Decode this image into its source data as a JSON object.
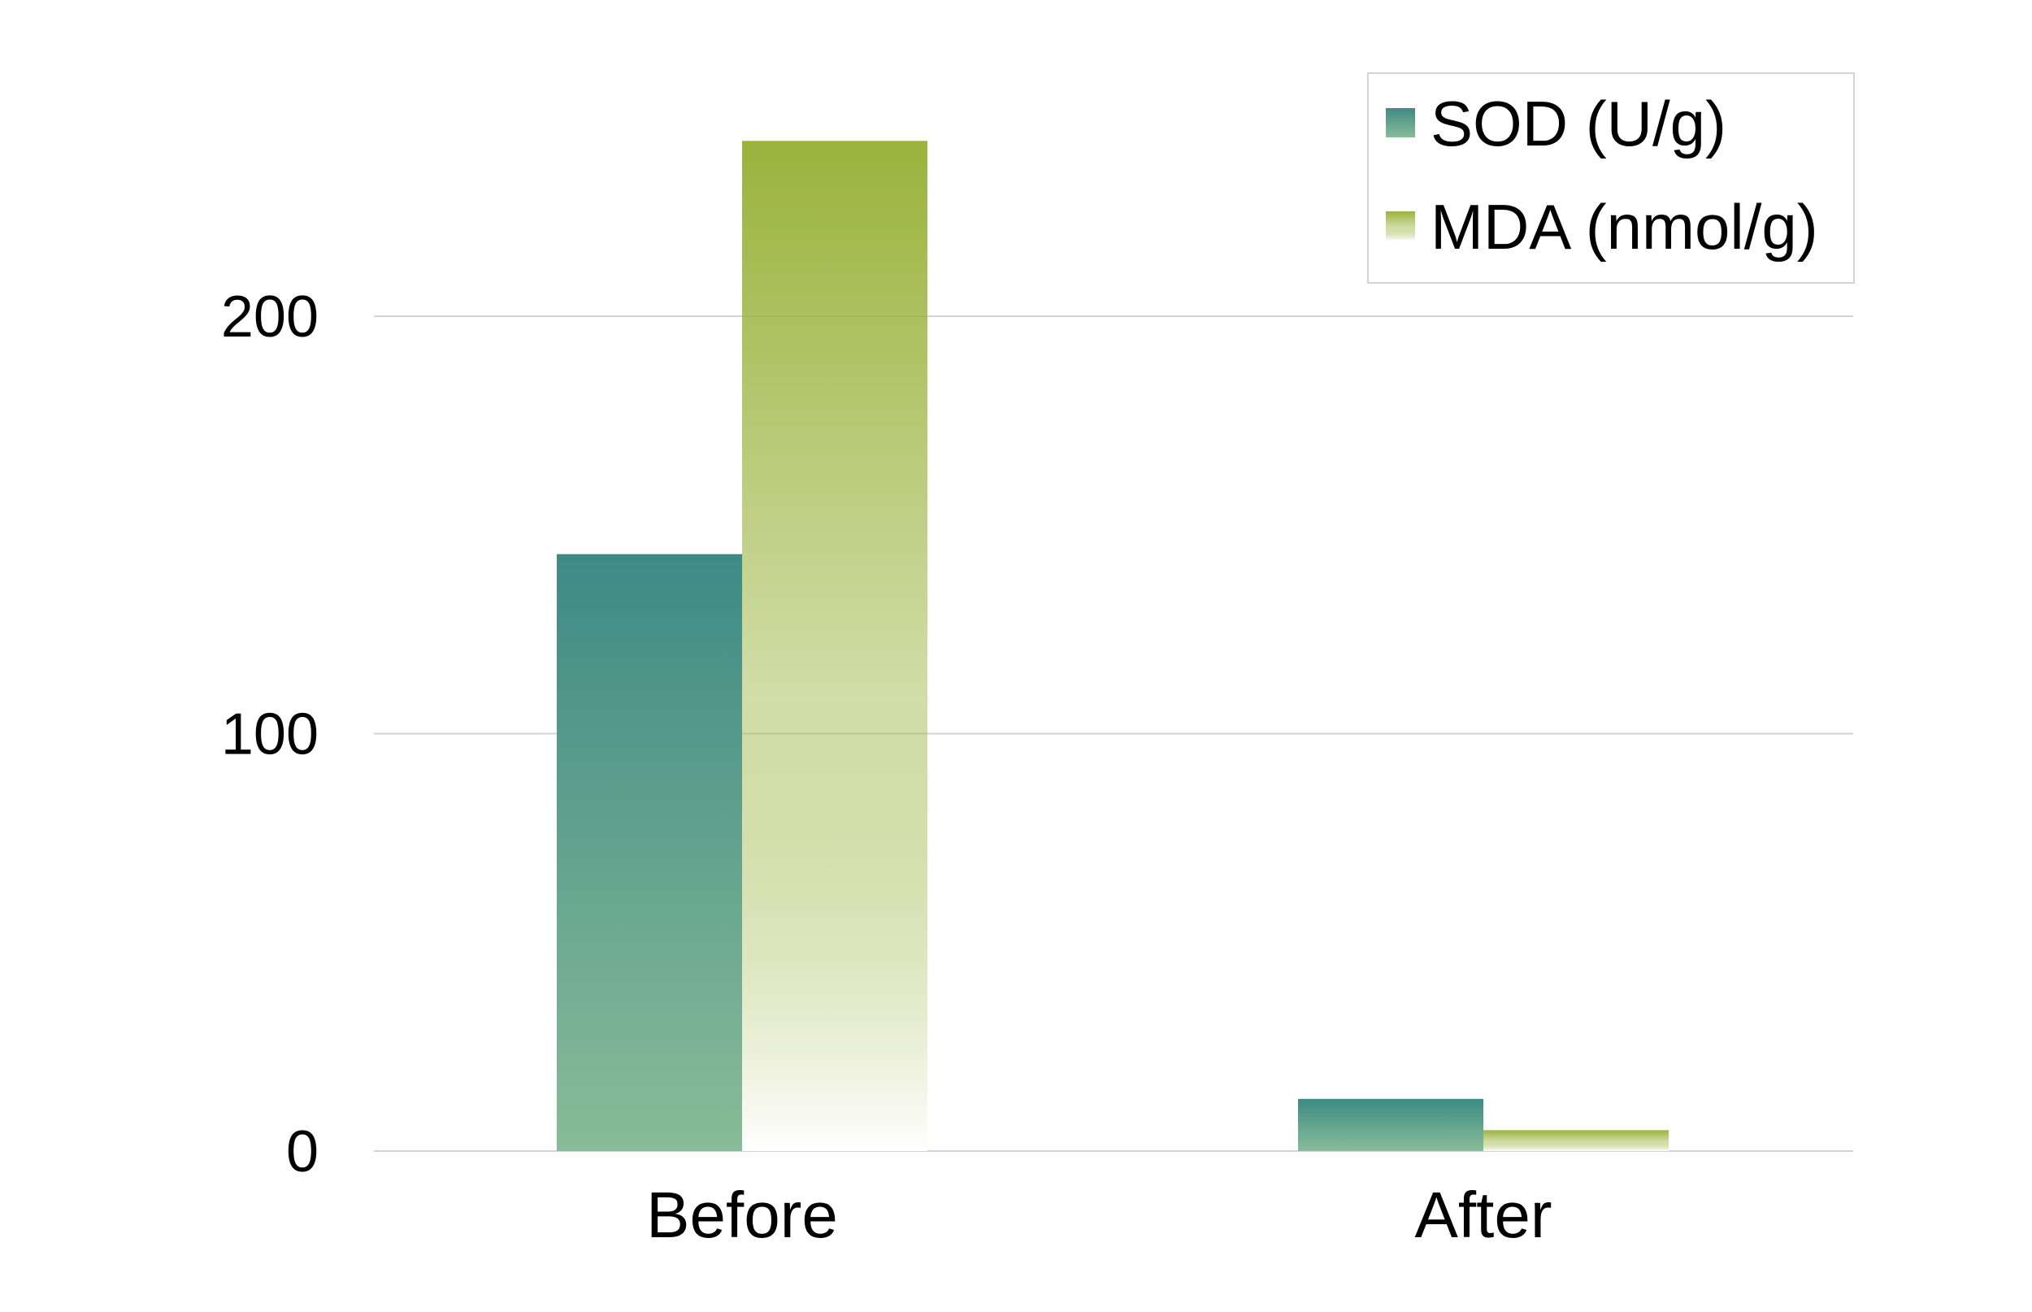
{
  "chart_data": {
    "type": "bar",
    "title": "",
    "xlabel": "",
    "ylabel": "",
    "categories": [
      "Before",
      "After"
    ],
    "series": [
      {
        "name": "SOD (U/g)",
        "values": [
          143,
          12.5
        ]
      },
      {
        "name": "MDA (nmol/g)",
        "values": [
          242,
          5
        ]
      }
    ],
    "ylim": [
      0,
      250
    ],
    "yticks": [
      0,
      100,
      200
    ],
    "ytick_labels": [
      "0",
      "100",
      "200"
    ],
    "grid": true,
    "legend_position": "top-right",
    "colors": {
      "sod_top": "#3e8a85",
      "sod_bottom": "#88bc98",
      "mda_top": "#9ab33c",
      "mda_bottom": "#ffffff",
      "gridline": "#d4d4d4"
    }
  }
}
